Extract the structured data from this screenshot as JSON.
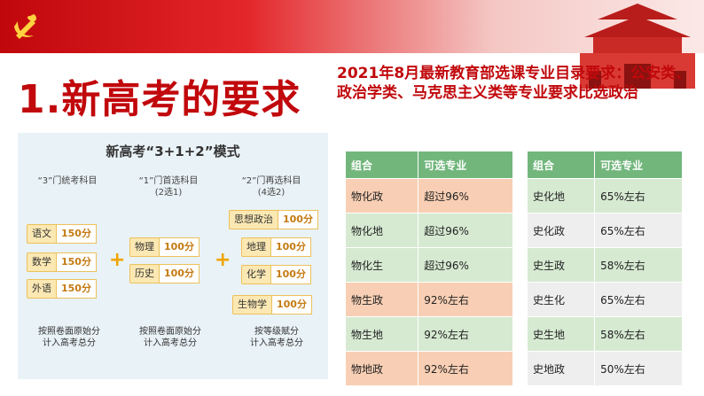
{
  "header": {
    "icons": [
      "party-emblem-icon",
      "tiananmen-icon"
    ]
  },
  "title": "1.新高考的要求",
  "requirement": "2021年8月最新教育部选课专业目录要求：公安类、政治学类、马克思主义类等专业要求比选政治",
  "model": {
    "title": "新高考“3+1+2”模式",
    "col1": {
      "head": "“3”门统考科目",
      "subjects": [
        {
          "name": "语文",
          "score": "150分"
        },
        {
          "name": "数学",
          "score": "150分"
        },
        {
          "name": "外语",
          "score": "150分"
        }
      ],
      "foot": "按照卷面原始分\n计入高考总分"
    },
    "col2": {
      "head": "“1”门首选科目\n(2选1)",
      "subjects": [
        {
          "name": "物理",
          "score": "100分"
        },
        {
          "name": "历史",
          "score": "100分"
        }
      ],
      "foot": "按照卷面原始分\n计入高考总分"
    },
    "col3": {
      "head": "“2”门再选科目\n(4选2)",
      "subjects": [
        {
          "name": "思想政治",
          "score": "100分"
        },
        {
          "name": "地理",
          "score": "100分"
        },
        {
          "name": "化学",
          "score": "100分"
        },
        {
          "name": "生物学",
          "score": "100分"
        }
      ],
      "foot": "按等级赋分\n计入高考总分"
    },
    "plus": "+"
  },
  "table1": {
    "headers": [
      "组合",
      "可选专业"
    ],
    "rows": [
      [
        "物化政",
        "超过96%"
      ],
      [
        "物化地",
        "超过96%"
      ],
      [
        "物化生",
        "超过96%"
      ],
      [
        "物生政",
        "92%左右"
      ],
      [
        "物生地",
        "92%左右"
      ],
      [
        "物地政",
        "92%左右"
      ]
    ]
  },
  "table2": {
    "headers": [
      "组合",
      "可选专业"
    ],
    "rows": [
      [
        "史化地",
        "65%左右"
      ],
      [
        "史化政",
        "65%左右"
      ],
      [
        "史生政",
        "58%左右"
      ],
      [
        "史生化",
        "65%左右"
      ],
      [
        "史生地",
        "58%左右"
      ],
      [
        "史地政",
        "50%左右"
      ]
    ]
  }
}
